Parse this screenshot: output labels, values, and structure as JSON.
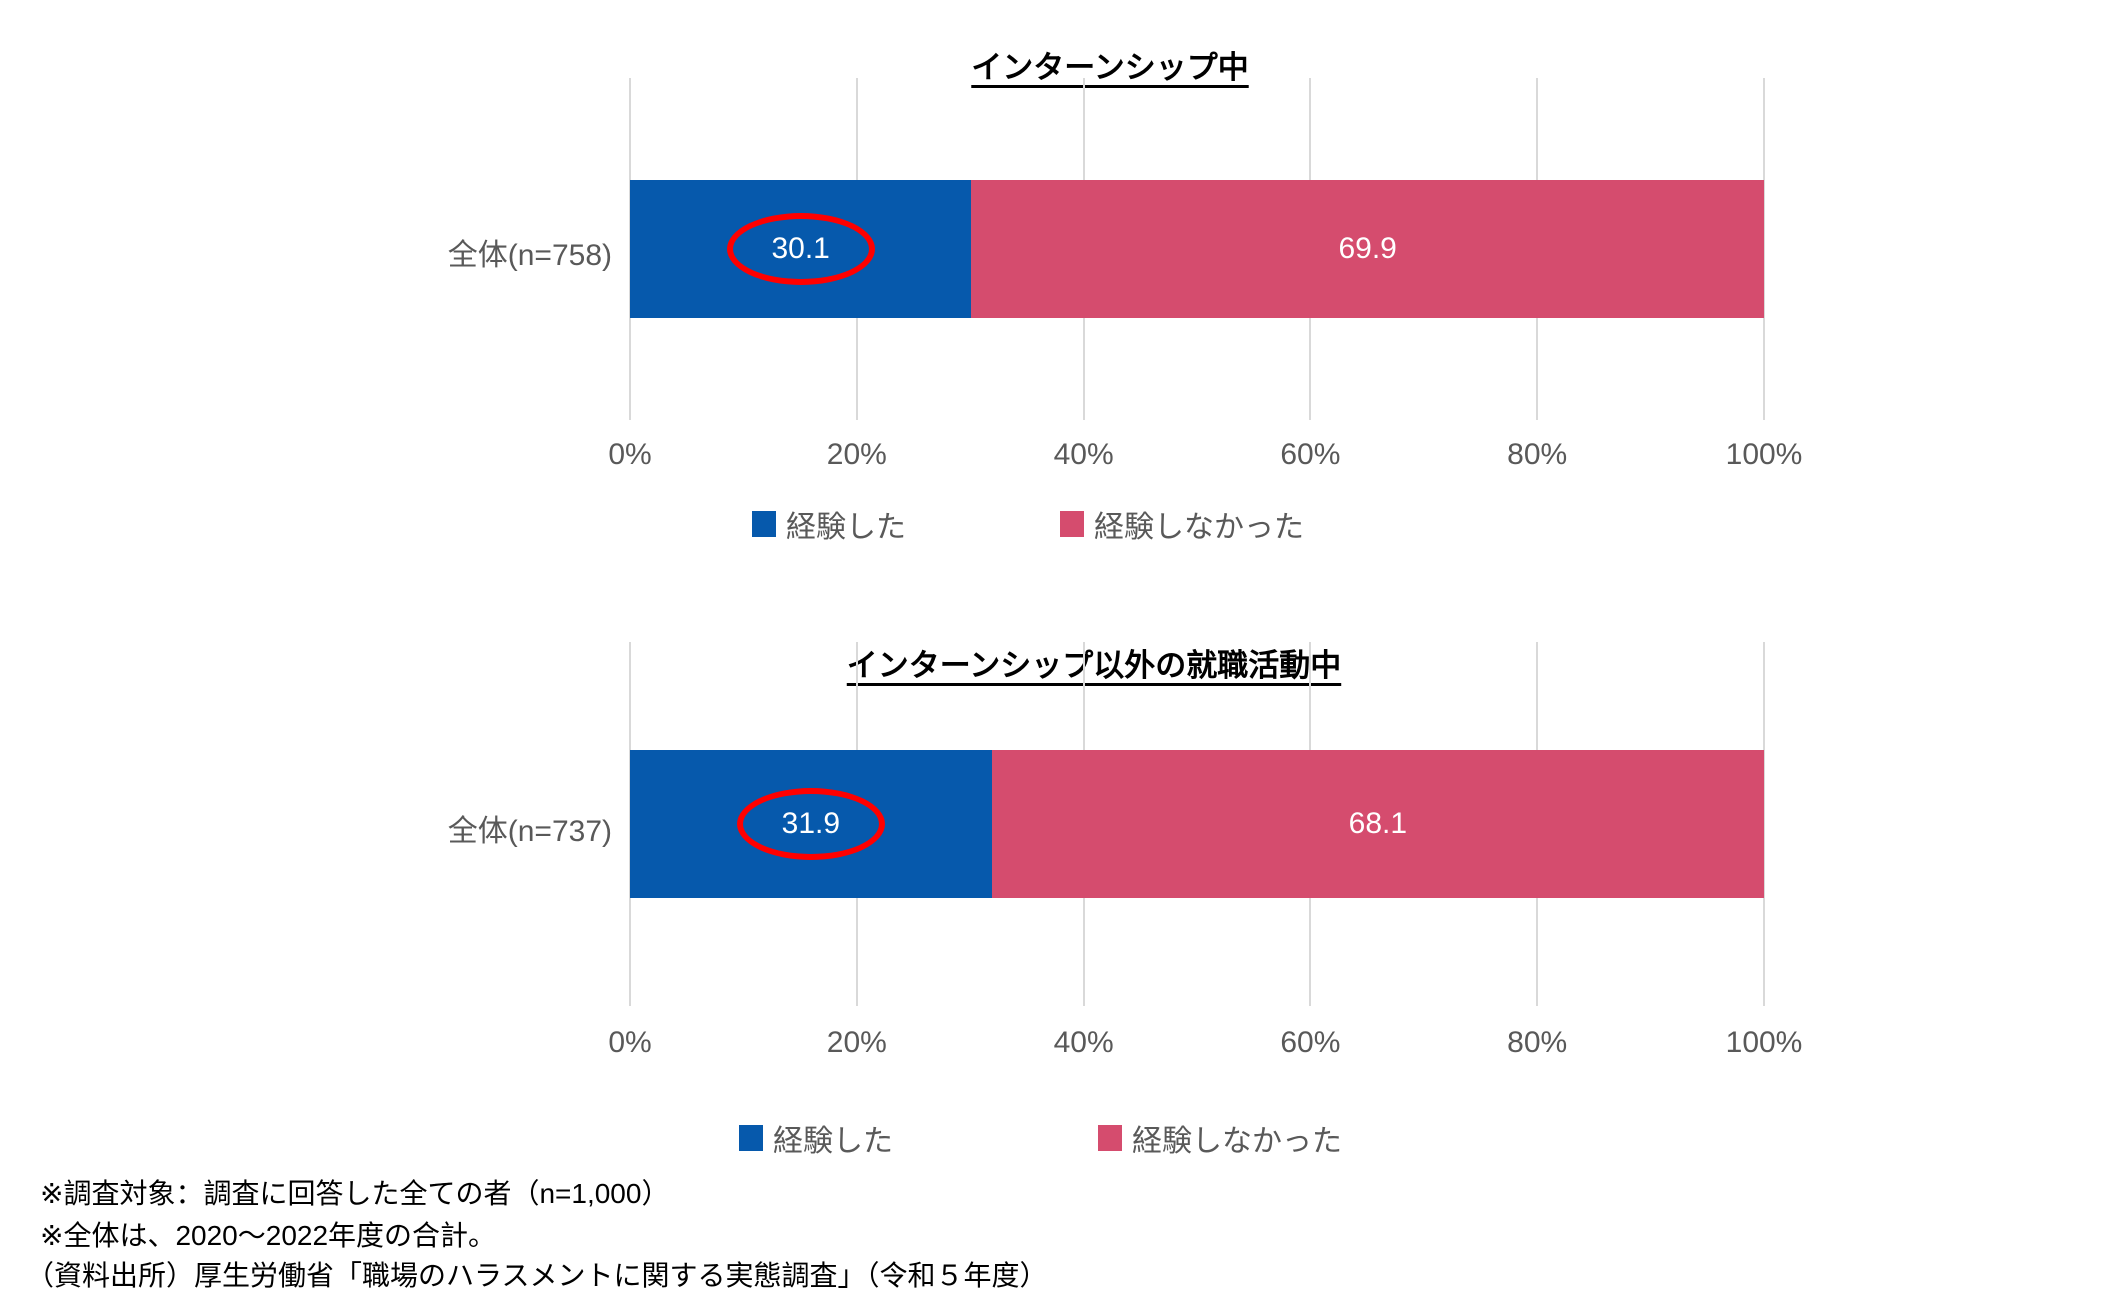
{
  "colors": {
    "experienced": "#0659AC",
    "not_experienced": "#D54C6E",
    "highlight_circle": "#FF0000",
    "gridline": "#D9D9D9",
    "axis_text": "#595959",
    "title_text": "#000000"
  },
  "legend": {
    "experienced": "経験した",
    "not_experienced": "経験しなかった"
  },
  "axis_ticks": [
    "0%",
    "20%",
    "40%",
    "60%",
    "80%",
    "100%"
  ],
  "charts": [
    {
      "title": "インターンシップ中",
      "category": "全体(n=758)",
      "experienced_label": "30.1",
      "not_experienced_label": "69.9"
    },
    {
      "title": "インターンシップ以外の就職活動中",
      "category": "全体(n=737)",
      "experienced_label": "31.9",
      "not_experienced_label": "68.1"
    }
  ],
  "footnotes": [
    "※調査対象：調査に回答した全ての者（n=1,000）",
    "※全体は、2020～2022年度の合計。",
    "（資料出所）厚生労働省「職場のハラスメントに関する実態調査」（令和５年度）"
  ],
  "chart_data": [
    {
      "type": "bar",
      "orientation": "horizontal",
      "stacked": true,
      "title": "インターンシップ中",
      "categories": [
        "全体(n=758)"
      ],
      "series": [
        {
          "name": "経験した",
          "values": [
            30.1
          ],
          "color": "#0659AC"
        },
        {
          "name": "経験しなかった",
          "values": [
            69.9
          ],
          "color": "#D54C6E"
        }
      ],
      "xlim": [
        0,
        100
      ],
      "x_ticks": [
        "0%",
        "20%",
        "40%",
        "60%",
        "80%",
        "100%"
      ],
      "grid": true,
      "legend_position": "bottom",
      "highlight": {
        "series": "経験した",
        "value": 30.1,
        "marker": "red-ellipse"
      }
    },
    {
      "type": "bar",
      "orientation": "horizontal",
      "stacked": true,
      "title": "インターンシップ以外の就職活動中",
      "categories": [
        "全体(n=737)"
      ],
      "series": [
        {
          "name": "経験した",
          "values": [
            31.9
          ],
          "color": "#0659AC"
        },
        {
          "name": "経験しなかった",
          "values": [
            68.1
          ],
          "color": "#D54C6E"
        }
      ],
      "xlim": [
        0,
        100
      ],
      "x_ticks": [
        "0%",
        "20%",
        "40%",
        "60%",
        "80%",
        "100%"
      ],
      "grid": true,
      "legend_position": "bottom",
      "highlight": {
        "series": "経験した",
        "value": 31.9,
        "marker": "red-ellipse"
      }
    }
  ]
}
